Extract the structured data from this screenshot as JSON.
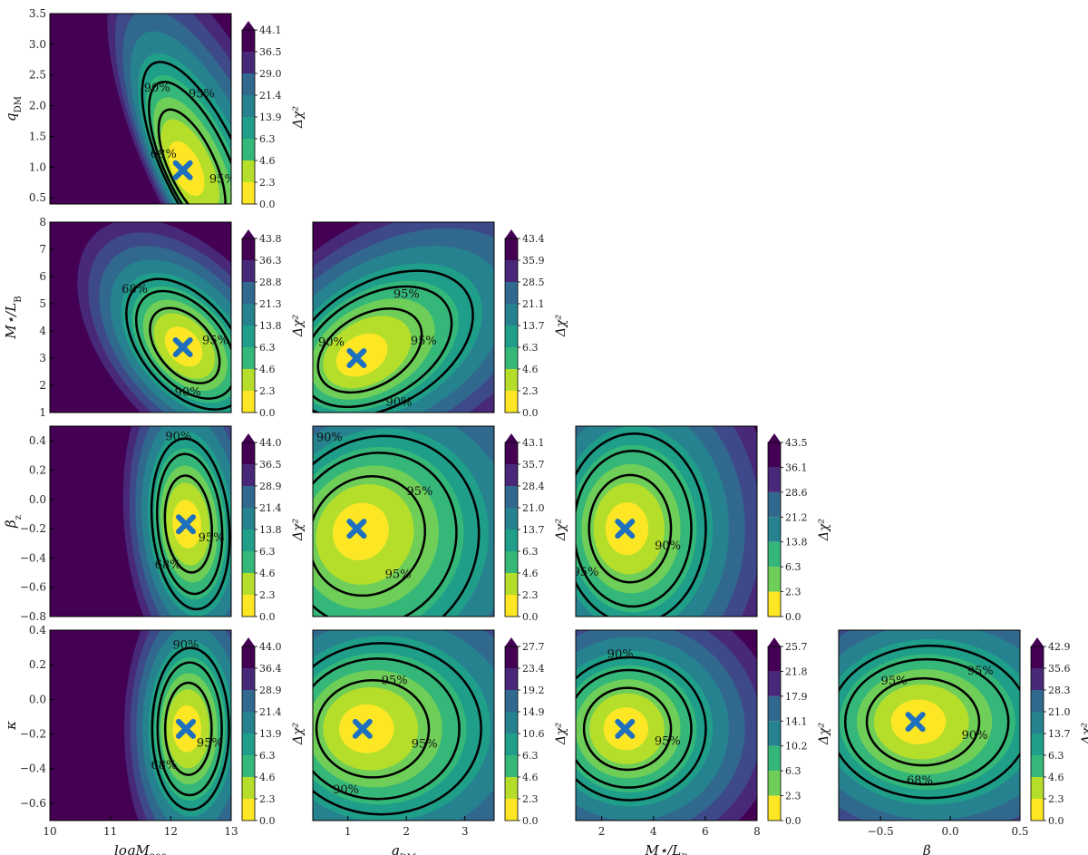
{
  "figure": {
    "colorbar_title": "Δχ²",
    "contour_levels": [
      "68%",
      "90%",
      "95%"
    ],
    "colormap": [
      "#fde725",
      "#b5de2b",
      "#6ece58",
      "#35b779",
      "#1f9e89",
      "#26828e",
      "#31688e",
      "#3e4989",
      "#482878",
      "#440154"
    ],
    "best_fit_marker_color": "#1f6fbf",
    "chart_data": [
      {
        "type": "heatmap",
        "row": 0,
        "col": 0,
        "xlabel": "",
        "ylabel": "q_DM",
        "xlim": [
          10,
          13
        ],
        "ylim": [
          0.4,
          3.5
        ],
        "xticks": [],
        "yticks": [
          "0.5",
          "1.0",
          "1.5",
          "2.0",
          "2.5",
          "3.0",
          "3.5"
        ],
        "best_fit": [
          12.2,
          0.95
        ],
        "colorbar_ticks": [
          "0.0",
          "2.3",
          "4.6",
          "6.3",
          "13.9",
          "21.4",
          "29.0",
          "36.5",
          "44.1"
        ],
        "contour_labels": [
          "95%",
          "68%",
          "90%",
          "68%",
          "90%",
          "95%"
        ]
      },
      {
        "type": "heatmap",
        "row": 1,
        "col": 0,
        "xlabel": "",
        "ylabel": "M⋆/L_B",
        "xlim": [
          10,
          13
        ],
        "ylim": [
          1,
          8
        ],
        "xticks": [],
        "yticks": [
          "1",
          "2",
          "3",
          "4",
          "5",
          "6",
          "7",
          "8"
        ],
        "best_fit": [
          12.2,
          3.4
        ],
        "colorbar_ticks": [
          "0.0",
          "2.3",
          "4.6",
          "6.3",
          "13.8",
          "21.3",
          "28.8",
          "36.3",
          "43.8"
        ],
        "contour_labels": [
          "95%",
          "90%",
          "68%"
        ]
      },
      {
        "type": "heatmap",
        "row": 1,
        "col": 1,
        "xlabel": "",
        "ylabel": "",
        "xlim": [
          0.4,
          3.5
        ],
        "ylim": [
          1,
          8
        ],
        "xticks": [],
        "yticks": [],
        "best_fit": [
          1.15,
          3.0
        ],
        "colorbar_ticks": [
          "0.0",
          "2.3",
          "4.6",
          "6.3",
          "13.7",
          "21.1",
          "28.5",
          "35.9",
          "43.4"
        ],
        "contour_labels": [
          "95%",
          "90%",
          "68%",
          "90%",
          "95%"
        ]
      },
      {
        "type": "heatmap",
        "row": 2,
        "col": 0,
        "xlabel": "",
        "ylabel": "β_z",
        "xlim": [
          10,
          13
        ],
        "ylim": [
          -0.8,
          0.5
        ],
        "xticks": [],
        "yticks": [
          "−0.8",
          "−0.6",
          "−0.4",
          "−0.2",
          "0.0",
          "0.2",
          "0.4"
        ],
        "best_fit": [
          12.25,
          -0.17
        ],
        "colorbar_ticks": [
          "0.0",
          "2.3",
          "4.6",
          "6.3",
          "13.8",
          "21.4",
          "28.9",
          "36.5",
          "44.0"
        ],
        "contour_labels": [
          "95%",
          "68%",
          "90%"
        ]
      },
      {
        "type": "heatmap",
        "row": 2,
        "col": 1,
        "xlabel": "",
        "ylabel": "",
        "xlim": [
          0.4,
          3.5
        ],
        "ylim": [
          -0.8,
          0.5
        ],
        "xticks": [],
        "yticks": [],
        "best_fit": [
          1.15,
          -0.2
        ],
        "colorbar_ticks": [
          "0.0",
          "2.3",
          "4.6",
          "6.3",
          "13.7",
          "21.0",
          "28.4",
          "35.7",
          "43.1"
        ],
        "contour_labels": [
          "95%",
          "68%",
          "90%",
          "95%"
        ]
      },
      {
        "type": "heatmap",
        "row": 2,
        "col": 2,
        "xlabel": "",
        "ylabel": "",
        "xlim": [
          1,
          8
        ],
        "ylim": [
          -0.8,
          0.5
        ],
        "xticks": [],
        "yticks": [],
        "best_fit": [
          2.9,
          -0.2
        ],
        "colorbar_ticks": [
          "0.0",
          "2.3",
          "6.3",
          "13.8",
          "21.2",
          "28.6",
          "36.1",
          "43.5"
        ],
        "contour_labels": [
          "90%",
          "95%",
          "68%"
        ]
      },
      {
        "type": "heatmap",
        "row": 3,
        "col": 0,
        "xlabel": "logM_200",
        "ylabel": "κ",
        "xlim": [
          10,
          13
        ],
        "ylim": [
          -0.7,
          0.4
        ],
        "xticks": [
          "10",
          "11",
          "12",
          "13"
        ],
        "yticks": [
          "−0.6",
          "−0.4",
          "−0.2",
          "0.0",
          "0.2",
          "0.4"
        ],
        "best_fit": [
          12.25,
          -0.17
        ],
        "colorbar_ticks": [
          "0.0",
          "2.3",
          "4.6",
          "6.3",
          "13.9",
          "21.4",
          "28.9",
          "36.4",
          "44.0"
        ],
        "contour_labels": [
          "95%",
          "68%",
          "90%"
        ]
      },
      {
        "type": "heatmap",
        "row": 3,
        "col": 1,
        "xlabel": "q_DM",
        "ylabel": "",
        "xlim": [
          0.4,
          3.5
        ],
        "ylim": [
          -0.7,
          0.4
        ],
        "xticks": [
          "1",
          "2",
          "3"
        ],
        "yticks": [],
        "best_fit": [
          1.25,
          -0.17
        ],
        "colorbar_ticks": [
          "0.0",
          "2.3",
          "4.6",
          "6.3",
          "10.6",
          "14.9",
          "19.2",
          "23.4",
          "27.7"
        ],
        "contour_labels": [
          "95%",
          "90%",
          "68%",
          "95%"
        ]
      },
      {
        "type": "heatmap",
        "row": 3,
        "col": 2,
        "xlabel": "M⋆/L_B",
        "ylabel": "",
        "xlim": [
          1,
          8
        ],
        "ylim": [
          -0.7,
          0.4
        ],
        "xticks": [
          "2",
          "4",
          "6",
          "8"
        ],
        "yticks": [],
        "best_fit": [
          2.9,
          -0.17
        ],
        "colorbar_ticks": [
          "0.0",
          "2.3",
          "6.3",
          "10.2",
          "14.1",
          "17.9",
          "21.8",
          "25.7"
        ],
        "contour_labels": [
          "95%",
          "68%",
          "90%"
        ]
      },
      {
        "type": "heatmap",
        "row": 3,
        "col": 3,
        "xlabel": "β_z",
        "ylabel": "",
        "xlim": [
          -0.8,
          0.5
        ],
        "ylim": [
          -0.7,
          0.4
        ],
        "xticks": [
          "−0.5",
          "0.0",
          "0.5"
        ],
        "yticks": [],
        "best_fit": [
          -0.25,
          -0.13
        ],
        "colorbar_ticks": [
          "0.0",
          "2.3",
          "4.6",
          "6.3",
          "13.7",
          "21.0",
          "28.3",
          "35.6",
          "42.9"
        ],
        "contour_labels": [
          "90%",
          "68%",
          "90%",
          "95%",
          "95%"
        ]
      }
    ]
  }
}
